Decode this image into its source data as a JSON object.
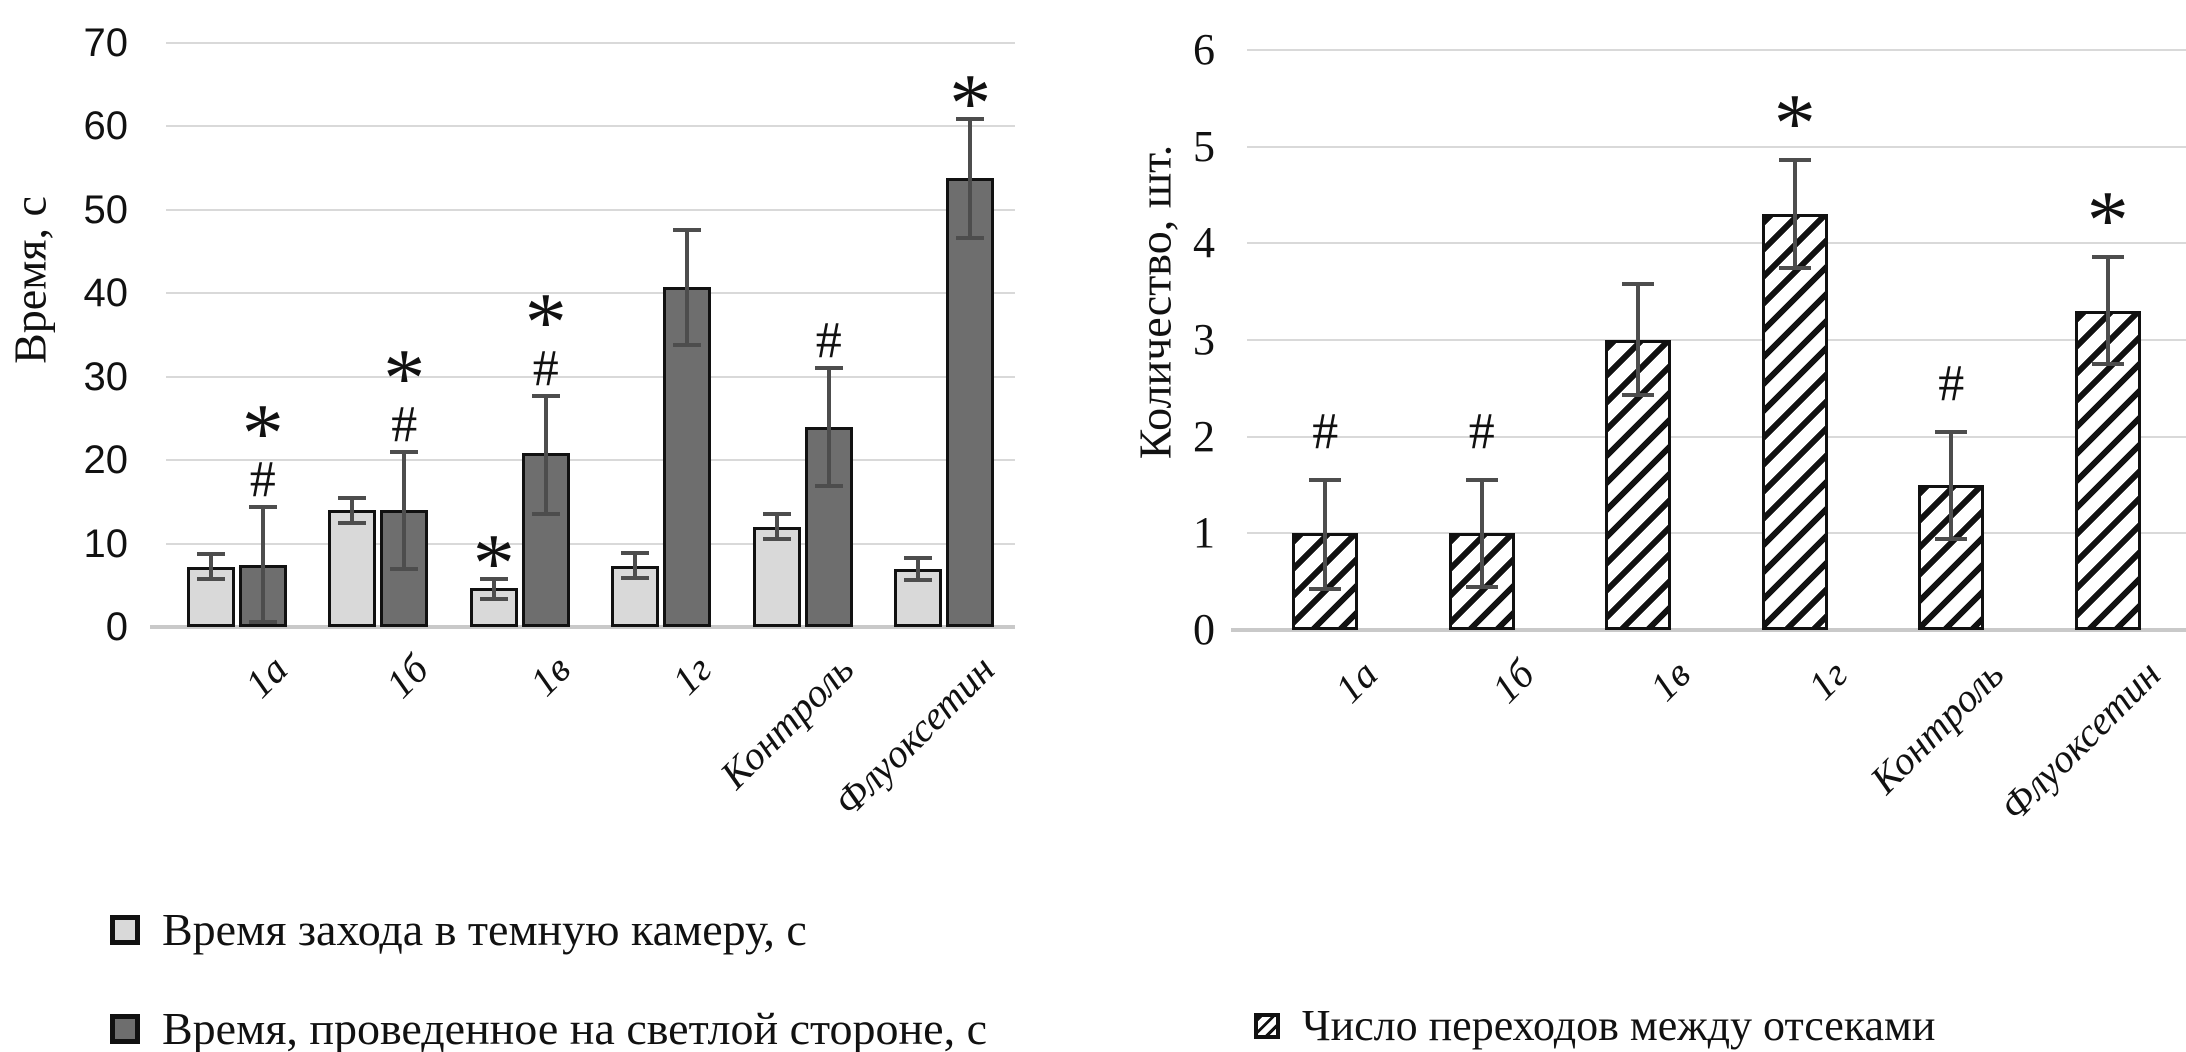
{
  "chart_data": [
    {
      "id": "dark-light-time-chart",
      "type": "bar",
      "title": "",
      "ylabel": "Время, с",
      "xlabel": "",
      "ylim": [
        0,
        70
      ],
      "yticks": [
        0,
        10,
        20,
        30,
        40,
        50,
        60,
        70
      ],
      "grid": true,
      "categories": [
        "1а",
        "1б",
        "1в",
        "1г",
        "Контроль",
        "Флуоксетин"
      ],
      "series": [
        {
          "name": "Время захода в темную камеру, с",
          "style": "light",
          "values": [
            7.2,
            14,
            4.7,
            7.3,
            12,
            7
          ],
          "err_low": [
            5.8,
            12.5,
            3.4,
            5.9,
            10.5,
            5.6
          ],
          "err_high": [
            8.8,
            15.5,
            5.8,
            8.9,
            13.5,
            8.3
          ],
          "marks": [
            [],
            [],
            [
              "*"
            ],
            [],
            [],
            []
          ]
        },
        {
          "name": "Время, проведенное на светлой стороне, с",
          "style": "dark",
          "values": [
            7.4,
            14,
            20.8,
            40.7,
            24,
            53.8
          ],
          "err_low": [
            0.6,
            7,
            13.5,
            33.8,
            16.9,
            46.6
          ],
          "err_high": [
            14.4,
            21,
            27.7,
            47.6,
            31.1,
            60.9
          ],
          "marks": [
            [
              "#",
              "*"
            ],
            [
              "#",
              "*"
            ],
            [
              "#",
              "*"
            ],
            [],
            [
              "#"
            ],
            [
              "*"
            ]
          ]
        }
      ]
    },
    {
      "id": "transitions-count-chart",
      "type": "bar",
      "title": "",
      "ylabel": "Количество, шт.",
      "xlabel": "",
      "ylim": [
        0,
        6
      ],
      "yticks": [
        0,
        1,
        2,
        3,
        4,
        5,
        6
      ],
      "grid": true,
      "categories": [
        "1а",
        "1б",
        "1в",
        "1г",
        "Контроль",
        "Флуоксетин"
      ],
      "series": [
        {
          "name": "Число переходов между отсеками",
          "style": "hatch",
          "values": [
            1,
            1,
            3,
            4.3,
            1.5,
            3.3
          ],
          "err_low": [
            0.42,
            0.45,
            2.43,
            3.75,
            0.94,
            2.75
          ],
          "err_high": [
            1.55,
            1.55,
            3.58,
            4.86,
            2.05,
            3.86
          ],
          "marks": [
            [
              "#"
            ],
            [
              "#"
            ],
            [],
            [
              "*"
            ],
            [
              "#"
            ],
            [
              "*"
            ]
          ]
        }
      ]
    }
  ],
  "legend": {
    "left_items": [
      {
        "swatch": "light",
        "label": "Время захода в темную камеру, с"
      },
      {
        "swatch": "dark",
        "label": "Время, проведенное на светлой стороне, с"
      }
    ],
    "right_items": [
      {
        "swatch": "hatch",
        "label": "Число переходов между отсеками"
      }
    ]
  },
  "colors": {
    "light_fill": "#d9d9d9",
    "dark_fill": "#6e6e6e",
    "bar_border": "#111111",
    "error_bar": "#4d4d4d",
    "gridline": "#d9d9d9",
    "baseline": "#c9c9c9",
    "hatch_stripe": "#111111",
    "text": "#111111"
  }
}
